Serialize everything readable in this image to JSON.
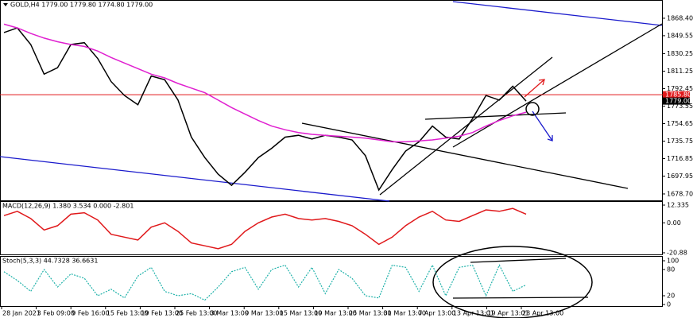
{
  "chart_data": [
    {
      "type": "line",
      "title": "GOLD,H4 1779.00 1779.80 1774.80 1779.00",
      "ylim": [
        1671.8,
        1888.1
      ],
      "yticks": [
        {
          "value": 1868.4,
          "label": "1868.40"
        },
        {
          "value": 1849.55,
          "label": "1849.55"
        },
        {
          "value": 1830.25,
          "label": "1830.25"
        },
        {
          "value": 1811.25,
          "label": "1811.25"
        },
        {
          "value": 1792.45,
          "label": "1792.45"
        },
        {
          "value": 1773.55,
          "label": "1773.55"
        },
        {
          "value": 1754.65,
          "label": "1754.65"
        },
        {
          "value": 1735.75,
          "label": "1735.75"
        },
        {
          "value": 1716.85,
          "label": "1716.85"
        },
        {
          "value": 1697.95,
          "label": "1697.95"
        },
        {
          "value": 1678.7,
          "label": "1678.70"
        }
      ],
      "price_labels": [
        {
          "value": 1785.8,
          "label": "1785.80",
          "color": "#e0191b"
        },
        {
          "value": 1779.0,
          "label": "1779.00",
          "color": "#000000"
        }
      ],
      "series": [
        {
          "color": "#000000",
          "values": [
            1853,
            1858,
            1840,
            1808,
            1815,
            1840,
            1842,
            1825,
            1800,
            1785,
            1775,
            1806,
            1802,
            1780,
            1740,
            1718,
            1700,
            1688,
            1702,
            1718,
            1728,
            1740,
            1742,
            1738,
            1742,
            1740,
            1737,
            1720,
            1683,
            1705,
            1725,
            1735,
            1752,
            1740,
            1738,
            1760,
            1785,
            1780,
            1795,
            1779
          ]
        },
        {
          "color": "#e020d0",
          "values": [
            1862,
            1858,
            1852,
            1847,
            1843,
            1840,
            1838,
            1833,
            1826,
            1820,
            1814,
            1808,
            1804,
            1798,
            1793,
            1788,
            1780,
            1772,
            1765,
            1758,
            1752,
            1748,
            1745,
            1743,
            1742,
            1741,
            1740,
            1739,
            1737,
            1735,
            1735,
            1736,
            1737,
            1739,
            1741,
            1745,
            1752,
            1758,
            1763,
            1767
          ]
        }
      ]
    },
    {
      "type": "line",
      "title": "MACD(12,26,9) 1.380 3.534 0.000 -2.801",
      "ylim": [
        -22.0,
        15.1
      ],
      "yticks": [
        12.335,
        {
          "value": 0,
          "label": "0.00"
        },
        -20.88
      ],
      "series": [
        {
          "color": "#e0191b",
          "values": [
            5,
            8,
            3,
            -5,
            -2,
            6,
            7,
            2,
            -8,
            -10,
            -12,
            -3,
            0,
            -6,
            -14,
            -16,
            -18,
            -15,
            -6,
            0,
            4,
            6,
            3,
            2,
            3,
            1,
            -2,
            -8,
            -15,
            -10,
            -2,
            4,
            8,
            2,
            1,
            5,
            9,
            8,
            10,
            6
          ]
        }
      ]
    },
    {
      "type": "line",
      "title": "Stoch(5,3,3) 44.7328 36.6631",
      "ylim": [
        -3.6,
        110.9
      ],
      "yticks": [
        100,
        80,
        20,
        0
      ],
      "series": [
        {
          "color": "#20b2aa",
          "values": [
            75,
            55,
            30,
            80,
            40,
            70,
            60,
            20,
            35,
            15,
            65,
            85,
            30,
            20,
            25,
            10,
            40,
            75,
            85,
            35,
            80,
            90,
            40,
            85,
            25,
            80,
            60,
            20,
            15,
            90,
            85,
            30,
            90,
            20,
            85,
            90,
            20,
            90,
            30,
            45
          ]
        }
      ],
      "x_tick_labels": [
        "28 Jan 2021",
        "3 Feb 09:00",
        "9 Feb 16:00",
        "15 Feb 13:00",
        "19 Feb 13:00",
        "25 Feb 13:00",
        "3 Mar 13:00",
        "9 Mar 13:00",
        "15 Mar 13:00",
        "19 Mar 13:00",
        "25 Mar 13:00",
        "31 Mar 13:00",
        "7 Apr 13:00",
        "13 Apr 13:01",
        "19 Apr 13:01",
        "23 Apr 13:00"
      ]
    }
  ]
}
